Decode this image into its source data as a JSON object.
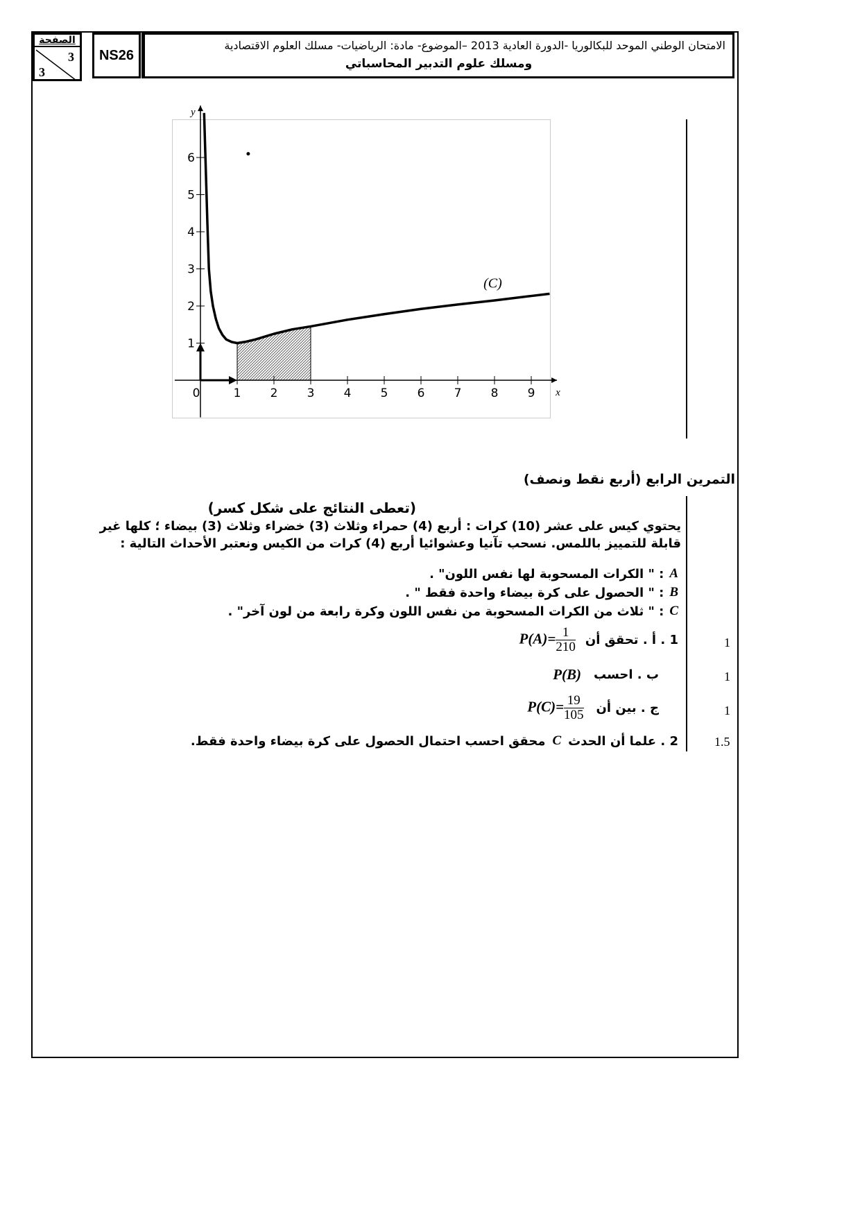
{
  "header": {
    "page_label": "الصفحة",
    "page_number": "3",
    "page_total": "3",
    "code": "NS26",
    "title_line1": "الامتحان الوطني الموحد للبكالوريا -الدورة العادية 2013 –الموضوع- مادة: الرياضيات- مسلك العلوم الاقتصادية",
    "title_line2": "ومسلك علوم التدبير المحاسباتي"
  },
  "chart_data": {
    "type": "line",
    "title": "",
    "xlabel": "x",
    "ylabel": "y",
    "xlim": [
      -0.7,
      9.7
    ],
    "ylim": [
      -1,
      7.4
    ],
    "x_ticks": [
      "0",
      "1",
      "2",
      "3",
      "4",
      "5",
      "6",
      "7",
      "8",
      "9"
    ],
    "y_ticks": [
      "1",
      "2",
      "3",
      "4",
      "5",
      "6"
    ],
    "grid": false,
    "series": [
      {
        "name": "(C)",
        "x": [
          0.1,
          0.13,
          0.16,
          0.19,
          0.23,
          0.28,
          0.34,
          0.42,
          0.5,
          0.6,
          0.7,
          0.85,
          1,
          1.25,
          1.5,
          2,
          2.5,
          3,
          4,
          5,
          6,
          7,
          8,
          9,
          9.5
        ],
        "y": [
          7.2,
          6.2,
          5.2,
          4.2,
          3.0,
          2.4,
          2.0,
          1.65,
          1.4,
          1.22,
          1.1,
          1.03,
          1,
          1.04,
          1.1,
          1.25,
          1.37,
          1.45,
          1.63,
          1.78,
          1.92,
          2.04,
          2.15,
          2.27,
          2.33
        ]
      }
    ],
    "shaded_region": {
      "from_x": 1,
      "to_x": 3,
      "under": "(C)",
      "pattern": "hatched"
    },
    "points": [
      {
        "x": 1.3,
        "y": 6.1
      }
    ],
    "unit_vectors": true
  },
  "exercise": {
    "title": "التمرين الرابع (أربع نقط ونصف)",
    "note": "(تعطى النتائج على شكل كسر)",
    "intro_line1": "يحتوي كيس على عشر (10) كرات : أربع (4)  حمراء وثلاث (3) خضراء وثلاث (3)  بيضاء ؛ كلها غير",
    "intro_line2": "قابلة للتمييز باللمس. نسحب تآنيا وعشوائيا أربع (4) كرات من الكيس ونعتبر الأحداث التالية :",
    "events": [
      {
        "letter": "A",
        "text": ": \" الكرات المسحوبة لها نفس اللون\" ."
      },
      {
        "letter": "B",
        "text": ":  \" الحصول على كرة بيضاء واحدة فقط \" ."
      },
      {
        "letter": "C",
        "text": ": \" ثلاث من الكرات المسحوبة من نفس اللون وكرة رابعة من لون آخر\" ."
      }
    ],
    "questions": [
      {
        "label": "1 . أ . تحقق أن",
        "math": "P(A)=",
        "num": "1",
        "den": "210",
        "score": "1"
      },
      {
        "label": "ب . احسب",
        "math": "P(B)",
        "score": "1"
      },
      {
        "label": "ج . بين أن",
        "math": "P(C)=",
        "num": "19",
        "den": "105",
        "score": "1"
      },
      {
        "label": "2 . علما أن الحدث",
        "math": "C",
        "label_after": "محقق احسب احتمال الحصول على كرة بيضاء واحدة فقط.",
        "score": "1.5"
      }
    ]
  }
}
